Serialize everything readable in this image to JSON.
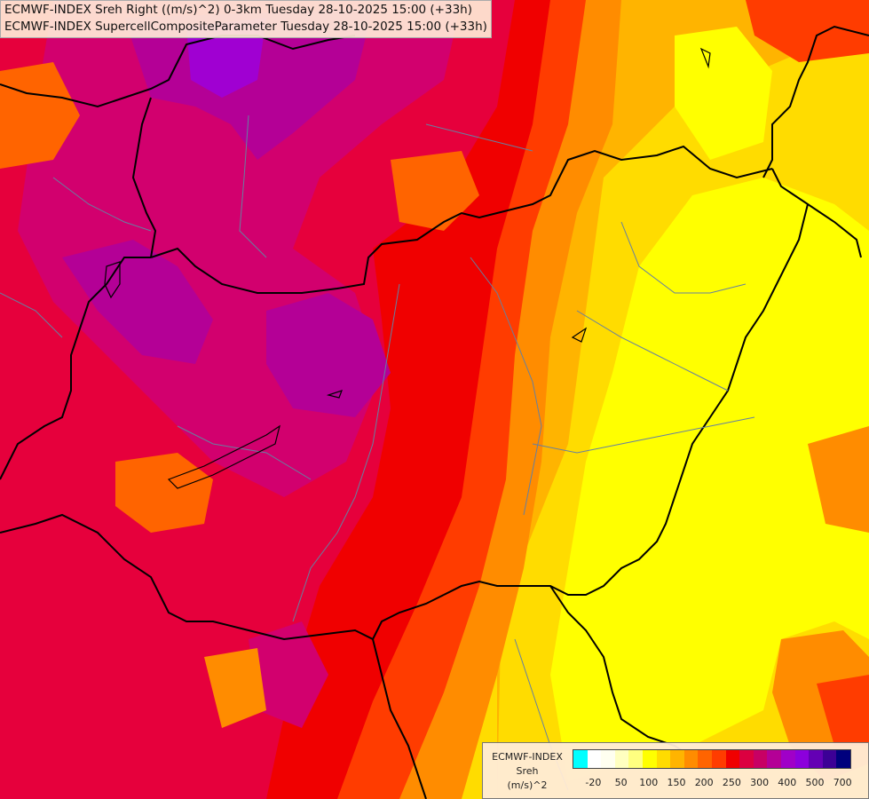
{
  "title": {
    "line1": "ECMWF-INDEX Sreh Right ((m/s)^2) 0-3km Tuesday 28-10-2025 15:00 (+33h)",
    "line2": "ECMWF-INDEX SupercellCompositeParameter Tuesday 28-10-2025 15:00 (+33h)"
  },
  "legend": {
    "model": "ECMWF-INDEX",
    "param": "Sreh",
    "unit": "(m/s)^2",
    "ticks": [
      "-20",
      "50",
      "100",
      "150",
      "200",
      "250",
      "300",
      "400",
      "500",
      "700"
    ],
    "colors": [
      "#00ffff",
      "#ffffff",
      "#fffff0",
      "#ffffc0",
      "#ffff80",
      "#ffff00",
      "#ffdc00",
      "#ffb400",
      "#ff8c00",
      "#ff6400",
      "#ff3c00",
      "#f00000",
      "#dc0040",
      "#c80064",
      "#b40096",
      "#a000c8",
      "#8c00dc",
      "#6400b4",
      "#3c0096",
      "#00007d"
    ]
  },
  "map": {
    "colors": {
      "magenta": "#d2006e",
      "purple": "#b40096",
      "violet": "#a000d2",
      "crimson": "#e6003c",
      "red": "#f00000",
      "orange_red": "#ff3c00",
      "orange": "#ff6400",
      "dark_orange": "#ff8c00",
      "amber": "#ffb400",
      "gold": "#ffdc00",
      "yellow": "#ffff00",
      "border": "#000000",
      "region_border": "#6680a0"
    }
  }
}
